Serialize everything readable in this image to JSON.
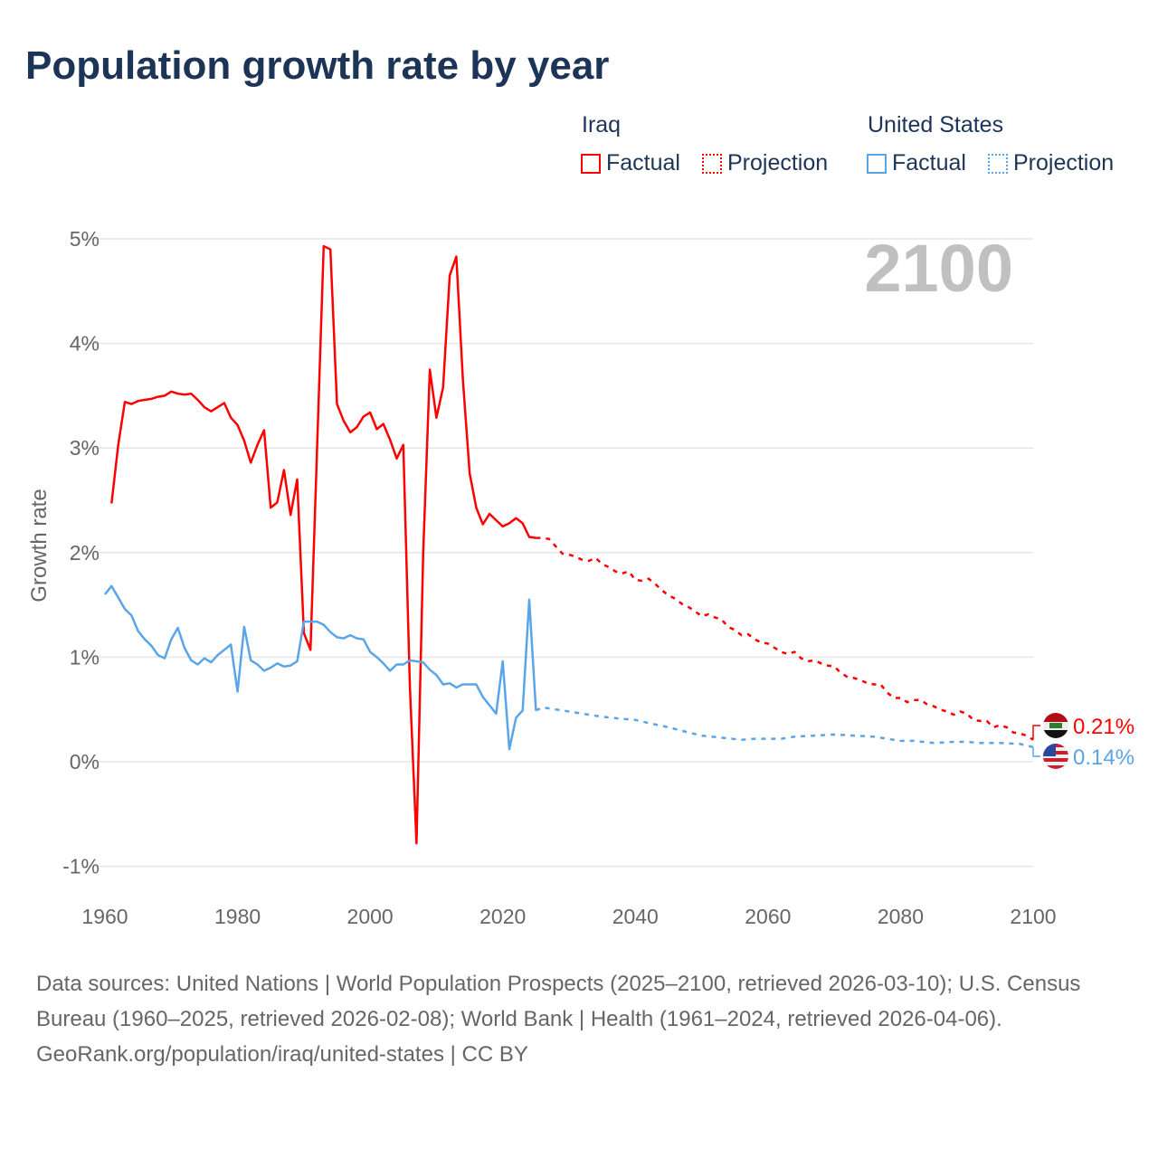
{
  "title": "Population growth rate by year",
  "legend": {
    "groups": [
      {
        "name": "Iraq",
        "factual": "Factual",
        "projection": "Projection",
        "color": "#ff0000"
      },
      {
        "name": "United States",
        "factual": "Factual",
        "projection": "Projection",
        "color": "#5aa5e8"
      }
    ]
  },
  "footer": {
    "sources": "Data sources: United Nations | World Population Prospects (2025–2100, retrieved 2026-03-10); U.S. Census Bureau (1960–2025, retrieved 2026-02-08); World Bank | Health (1961–2024, retrieved 2026-04-06).",
    "credit": "GeoRank.org/population/iraq/united-states | CC BY"
  },
  "chart_data": {
    "type": "line",
    "title": "Population growth rate by year",
    "xlabel": "",
    "ylabel": "Growth rate",
    "xlim": [
      1960,
      2100
    ],
    "ylim": [
      -1,
      5
    ],
    "x_ticks": [
      "1960",
      "1980",
      "2000",
      "2020",
      "2040",
      "2060",
      "2080",
      "2100"
    ],
    "x_tick_values": [
      1960,
      1980,
      2000,
      2020,
      2040,
      2060,
      2080,
      2100
    ],
    "y_ticks": [
      "-1%",
      "0%",
      "1%",
      "2%",
      "3%",
      "4%",
      "5%"
    ],
    "y_tick_values": [
      -1,
      0,
      1,
      2,
      3,
      4,
      5
    ],
    "grid": true,
    "current_year_label": "2100",
    "series": [
      {
        "name": "Iraq",
        "color": "#ff0000",
        "end_label": "0.21%",
        "factual": {
          "start_year": 1961,
          "values": [
            2.47,
            3.03,
            3.44,
            3.42,
            3.45,
            3.46,
            3.47,
            3.49,
            3.5,
            3.54,
            3.52,
            3.51,
            3.52,
            3.46,
            3.39,
            3.35,
            3.39,
            3.43,
            3.29,
            3.22,
            3.07,
            2.86,
            3.03,
            3.17,
            2.43,
            2.48,
            2.79,
            2.36,
            2.7,
            1.23,
            1.07,
            3.0,
            4.93,
            4.9,
            3.42,
            3.26,
            3.15,
            3.2,
            3.3,
            3.34,
            3.18,
            3.23,
            3.08,
            2.9,
            3.03,
            0.71,
            -0.78,
            2.0,
            3.75,
            3.29,
            3.58,
            4.65,
            4.83,
            3.65,
            2.76,
            2.43,
            2.27,
            2.37,
            2.31,
            2.25,
            2.28,
            2.33,
            2.28,
            2.15,
            2.14
          ]
        },
        "projection": {
          "points": [
            [
              2025,
              2.14
            ],
            [
              2026,
              2.14
            ],
            [
              2027,
              2.13
            ],
            [
              2028,
              2.06
            ],
            [
              2029,
              1.99
            ],
            [
              2030,
              1.98
            ],
            [
              2031,
              1.96
            ],
            [
              2032,
              1.93
            ],
            [
              2033,
              1.92
            ],
            [
              2034,
              1.95
            ],
            [
              2035,
              1.89
            ],
            [
              2036,
              1.86
            ],
            [
              2037,
              1.82
            ],
            [
              2038,
              1.8
            ],
            [
              2039,
              1.82
            ],
            [
              2040,
              1.74
            ],
            [
              2041,
              1.73
            ],
            [
              2042,
              1.75
            ],
            [
              2043,
              1.7
            ],
            [
              2044,
              1.64
            ],
            [
              2045,
              1.59
            ],
            [
              2046,
              1.56
            ],
            [
              2047,
              1.51
            ],
            [
              2048,
              1.48
            ],
            [
              2049,
              1.44
            ],
            [
              2050,
              1.39
            ],
            [
              2051,
              1.41
            ],
            [
              2052,
              1.38
            ],
            [
              2053,
              1.36
            ],
            [
              2054,
              1.29
            ],
            [
              2055,
              1.26
            ],
            [
              2056,
              1.21
            ],
            [
              2057,
              1.22
            ],
            [
              2058,
              1.17
            ],
            [
              2059,
              1.14
            ],
            [
              2060,
              1.13
            ],
            [
              2061,
              1.09
            ],
            [
              2062,
              1.05
            ],
            [
              2063,
              1.03
            ],
            [
              2064,
              1.05
            ],
            [
              2065,
              0.99
            ],
            [
              2066,
              0.96
            ],
            [
              2067,
              0.97
            ],
            [
              2068,
              0.94
            ],
            [
              2069,
              0.92
            ],
            [
              2070,
              0.91
            ],
            [
              2071,
              0.85
            ],
            [
              2072,
              0.81
            ],
            [
              2073,
              0.8
            ],
            [
              2074,
              0.78
            ],
            [
              2075,
              0.75
            ],
            [
              2076,
              0.74
            ],
            [
              2077,
              0.74
            ],
            [
              2078,
              0.66
            ],
            [
              2079,
              0.61
            ],
            [
              2080,
              0.61
            ],
            [
              2081,
              0.57
            ],
            [
              2082,
              0.59
            ],
            [
              2083,
              0.59
            ],
            [
              2084,
              0.55
            ],
            [
              2085,
              0.53
            ],
            [
              2086,
              0.5
            ],
            [
              2087,
              0.48
            ],
            [
              2088,
              0.45
            ],
            [
              2089,
              0.48
            ],
            [
              2090,
              0.46
            ],
            [
              2091,
              0.4
            ],
            [
              2092,
              0.39
            ],
            [
              2093,
              0.39
            ],
            [
              2094,
              0.33
            ],
            [
              2095,
              0.35
            ],
            [
              2096,
              0.33
            ],
            [
              2097,
              0.28
            ],
            [
              2098,
              0.27
            ],
            [
              2099,
              0.25
            ],
            [
              2100,
              0.21
            ]
          ]
        }
      },
      {
        "name": "United States",
        "color": "#5aa5e8",
        "end_label": "0.14%",
        "factual": {
          "start_year": 1960,
          "values": [
            1.6,
            1.68,
            1.57,
            1.46,
            1.4,
            1.25,
            1.17,
            1.11,
            1.02,
            0.99,
            1.17,
            1.28,
            1.09,
            0.97,
            0.93,
            0.99,
            0.95,
            1.02,
            1.07,
            1.12,
            0.67,
            1.29,
            0.97,
            0.93,
            0.87,
            0.9,
            0.94,
            0.91,
            0.92,
            0.96,
            1.34,
            1.34,
            1.34,
            1.31,
            1.24,
            1.19,
            1.18,
            1.21,
            1.18,
            1.17,
            1.05,
            1.0,
            0.94,
            0.87,
            0.93,
            0.93,
            0.97,
            0.96,
            0.95,
            0.88,
            0.83,
            0.74,
            0.75,
            0.71,
            0.74,
            0.74,
            0.74,
            0.62,
            0.54,
            0.46,
            0.96,
            0.12,
            0.42,
            0.49,
            1.55,
            0.49
          ]
        },
        "projection": {
          "points": [
            [
              2025,
              0.49
            ],
            [
              2026,
              0.52
            ],
            [
              2028,
              0.5
            ],
            [
              2030,
              0.48
            ],
            [
              2032,
              0.46
            ],
            [
              2035,
              0.43
            ],
            [
              2038,
              0.41
            ],
            [
              2040,
              0.4
            ],
            [
              2042,
              0.37
            ],
            [
              2045,
              0.33
            ],
            [
              2048,
              0.28
            ],
            [
              2050,
              0.25
            ],
            [
              2053,
              0.23
            ],
            [
              2056,
              0.21
            ],
            [
              2058,
              0.22
            ],
            [
              2060,
              0.22
            ],
            [
              2062,
              0.22
            ],
            [
              2064,
              0.24
            ],
            [
              2067,
              0.25
            ],
            [
              2070,
              0.26
            ],
            [
              2073,
              0.25
            ],
            [
              2076,
              0.24
            ],
            [
              2078,
              0.22
            ],
            [
              2080,
              0.2
            ],
            [
              2082,
              0.2
            ],
            [
              2085,
              0.18
            ],
            [
              2088,
              0.19
            ],
            [
              2090,
              0.19
            ],
            [
              2092,
              0.18
            ],
            [
              2095,
              0.18
            ],
            [
              2098,
              0.17
            ],
            [
              2100,
              0.14
            ]
          ]
        }
      }
    ]
  }
}
